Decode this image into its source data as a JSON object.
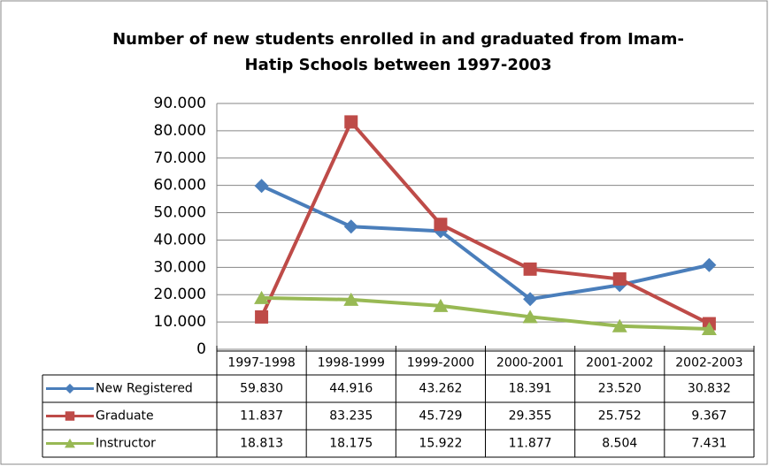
{
  "chart_data": {
    "type": "line",
    "title": "Number of new students enrolled in and graduated from Imam-Hatip Schools between 1997-2003",
    "categories": [
      "1997-1998",
      "1998-1999",
      "1999-2000",
      "2000-2001",
      "2001-2002",
      "2002-2003"
    ],
    "series": [
      {
        "name": "New Registered",
        "color": "#4a7ebb",
        "marker": "diamond",
        "values": [
          59830,
          44916,
          43262,
          18391,
          23520,
          30832
        ],
        "value_labels": [
          "59.830",
          "44.916",
          "43.262",
          "18.391",
          "23.520",
          "30.832"
        ]
      },
      {
        "name": "Graduate",
        "color": "#be4b48",
        "marker": "square",
        "values": [
          11837,
          83235,
          45729,
          29355,
          25752,
          9367
        ],
        "value_labels": [
          "11.837",
          "83.235",
          "45.729",
          "29.355",
          "25.752",
          "9.367"
        ]
      },
      {
        "name": "Instructor",
        "color": "#98b954",
        "marker": "triangle",
        "values": [
          18813,
          18175,
          15922,
          11877,
          8504,
          7431
        ],
        "value_labels": [
          "18.813",
          "18.175",
          "15.922",
          "11.877",
          "8.504",
          "7.431"
        ]
      }
    ],
    "ylim": [
      0,
      90000
    ],
    "yticks": [
      0,
      {
        "value": 10000,
        "label": "10.000"
      },
      {
        "value": 20000,
        "label": "20.000"
      },
      {
        "value": 30000,
        "label": "30.000"
      },
      {
        "value": 40000,
        "label": "40.000"
      },
      {
        "value": 50000,
        "label": "50.000"
      },
      {
        "value": 60000,
        "label": "60.000"
      },
      {
        "value": 70000,
        "label": "70.000"
      },
      {
        "value": 80000,
        "label": "80.000"
      },
      {
        "value": 90000,
        "label": "90.000"
      }
    ],
    "grid": true
  }
}
